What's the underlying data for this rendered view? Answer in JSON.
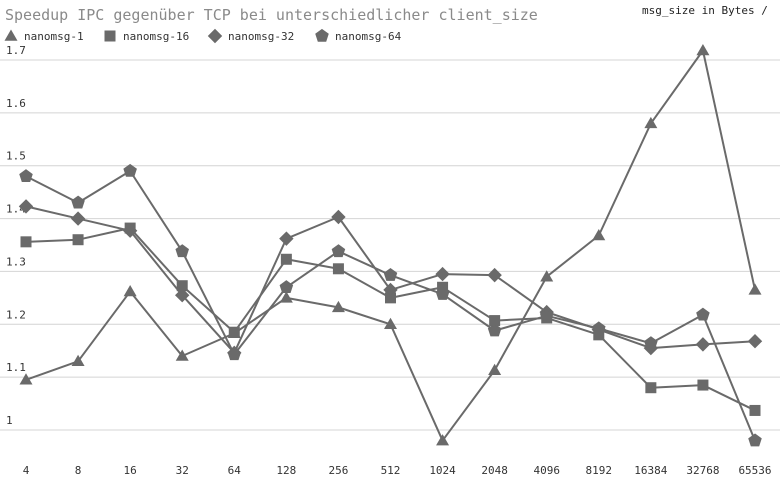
{
  "chart_data": {
    "type": "line",
    "title": "Speedup IPC gegenüber TCP bei unterschiedlicher client_size",
    "xlabel": "msg_size in Bytes /",
    "ylabel": "",
    "categories": [
      "4",
      "8",
      "16",
      "32",
      "64",
      "128",
      "256",
      "512",
      "1024",
      "2048",
      "4096",
      "8192",
      "16384",
      "32768",
      "65536"
    ],
    "yticks": [
      "1",
      "1.1",
      "1.2",
      "1.3",
      "1.4",
      "1.5",
      "1.6",
      "1.7"
    ],
    "ylim": [
      0.97,
      1.75
    ],
    "grid": true,
    "legend_position": "top-left",
    "line_color": "#6a6a6a",
    "series": [
      {
        "name": "nanomsg-1",
        "marker": "triangle",
        "values": [
          1.095,
          1.13,
          1.262,
          1.14,
          1.183,
          1.25,
          1.232,
          1.2,
          0.98,
          1.113,
          1.29,
          1.368,
          1.58,
          1.718,
          1.265
        ]
      },
      {
        "name": "nanomsg-16",
        "marker": "square",
        "values": [
          1.356,
          1.36,
          1.382,
          1.273,
          1.185,
          1.323,
          1.305,
          1.25,
          1.27,
          1.207,
          1.212,
          1.18,
          1.08,
          1.085,
          1.037
        ]
      },
      {
        "name": "nanomsg-32",
        "marker": "diamond",
        "values": [
          1.423,
          1.4,
          1.377,
          1.255,
          1.146,
          1.362,
          1.403,
          1.265,
          1.295,
          1.293,
          1.223,
          1.19,
          1.155,
          1.162,
          1.168
        ]
      },
      {
        "name": "nanomsg-64",
        "marker": "pentagon",
        "values": [
          1.48,
          1.43,
          1.49,
          1.338,
          1.143,
          1.27,
          1.338,
          1.293,
          1.257,
          1.188,
          1.216,
          1.192,
          1.164,
          1.218,
          0.98
        ]
      }
    ]
  }
}
